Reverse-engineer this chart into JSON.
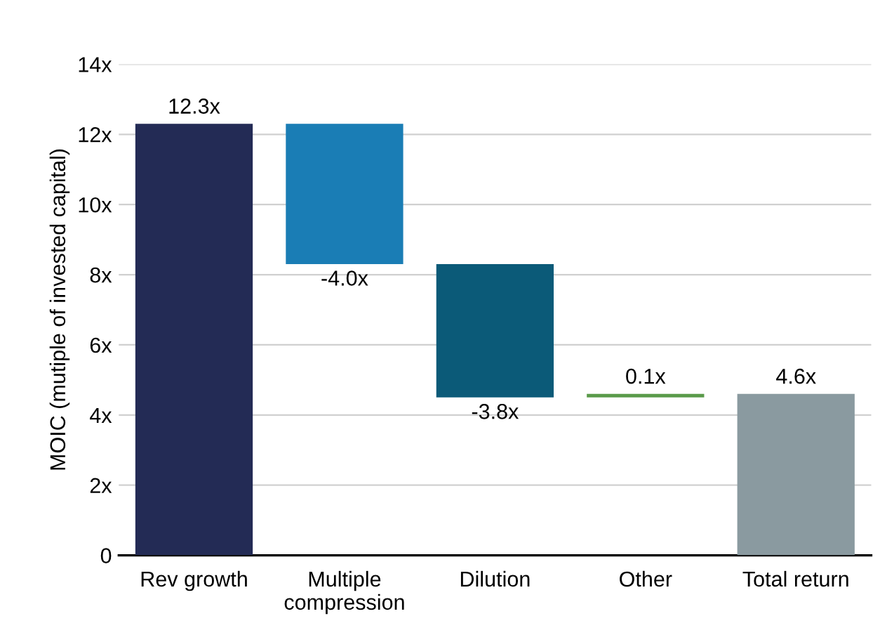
{
  "chart_data": {
    "type": "bar",
    "ylabel": "MOIC (mutiple of invested capital)",
    "categories": [
      "Rev growth",
      "Multiple\ncompression",
      "Dilution",
      "Other",
      "Total return"
    ],
    "values": [
      12.3,
      -4.0,
      -3.8,
      0.1,
      4.6
    ],
    "base": [
      0,
      12.3,
      8.3,
      4.5,
      0
    ],
    "colors": [
      "#232b55",
      "#1a7db5",
      "#0b5a78",
      "#5a9a4a",
      "#8a9aa0"
    ],
    "value_labels": [
      "12.3x",
      "-4.0x",
      "-3.8x",
      "0.1x",
      "4.6x"
    ],
    "ylim": [
      0,
      14
    ],
    "yticks": [
      0,
      {
        "value": 2,
        "label": "2x"
      },
      {
        "value": 4,
        "label": "4x"
      },
      {
        "value": 6,
        "label": "6x"
      },
      {
        "value": 8,
        "label": "8x"
      },
      {
        "value": 10,
        "label": "10x"
      },
      {
        "value": 12,
        "label": "12x"
      },
      {
        "value": 14,
        "label": "14x"
      }
    ],
    "grid": "y",
    "legend": false
  }
}
